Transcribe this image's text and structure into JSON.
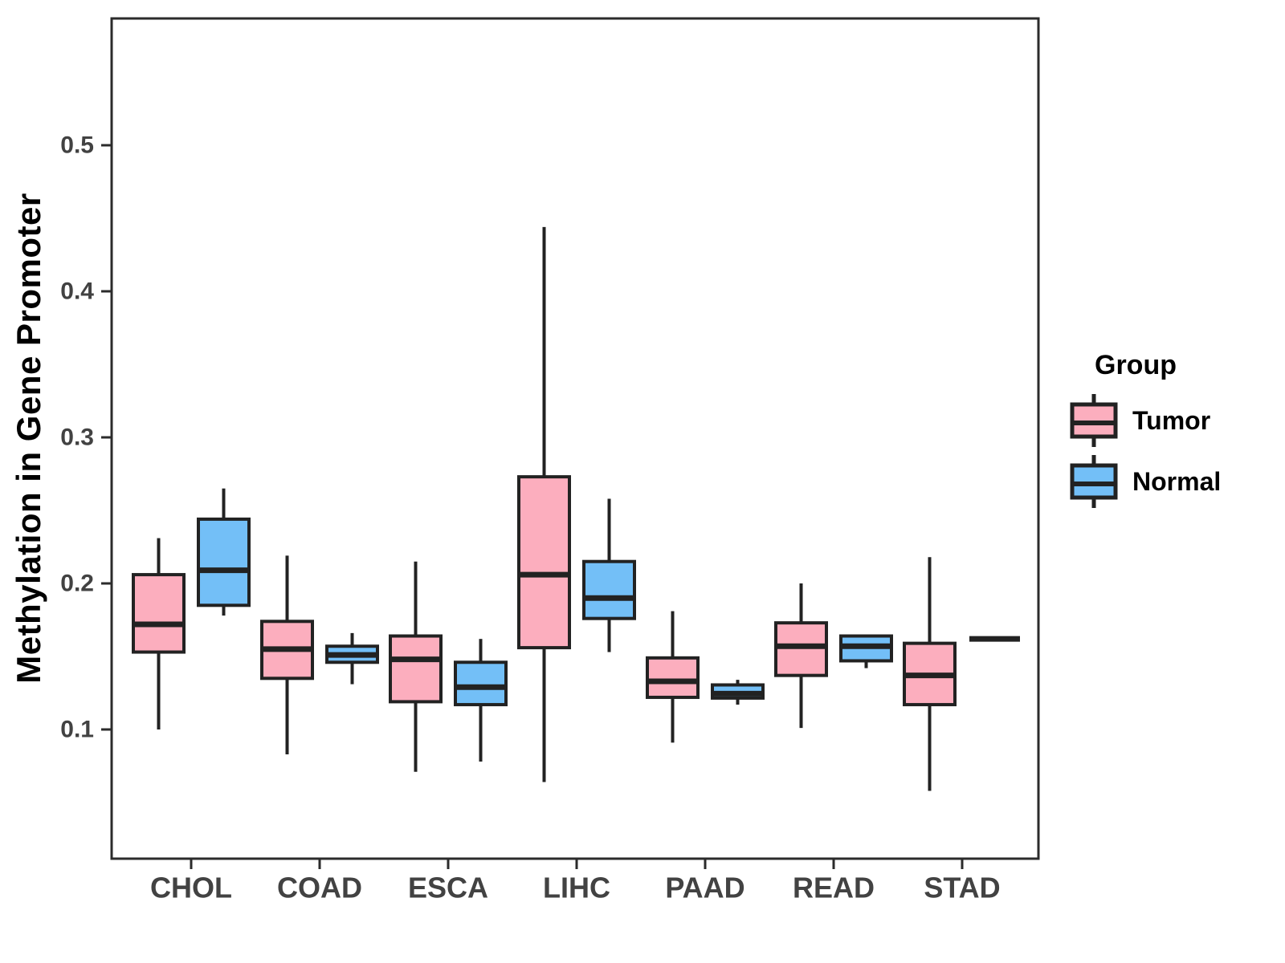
{
  "y_axis": {
    "label": "Methylation in Gene Promoter",
    "tick_labels": [
      "0.1",
      "0.2",
      "0.3",
      "0.4",
      "0.5"
    ],
    "tick_values": [
      0.1,
      0.2,
      0.3,
      0.4,
      0.5
    ]
  },
  "x_axis": {
    "categories": [
      "CHOL",
      "COAD",
      "ESCA",
      "LIHC",
      "PAAD",
      "READ",
      "STAD"
    ]
  },
  "legend": {
    "title": "Group",
    "items": [
      {
        "label": "Tumor",
        "color": "#FCAEBE"
      },
      {
        "label": "Normal",
        "color": "#73BFF7"
      }
    ]
  },
  "colors": {
    "tumor_fill": "#FCAEBE",
    "normal_fill": "#73BFF7",
    "line": "#222222",
    "panel_border": "#2B2B2B",
    "tick_text": "#424242",
    "title_text": "#000000",
    "background": "#FFFFFF"
  },
  "chart_data": {
    "type": "boxplot",
    "title": "",
    "xlabel": "",
    "ylabel": "Methylation in Gene Promoter",
    "ylim": [
      0.01,
      0.59
    ],
    "grid": false,
    "legend_position": "right",
    "categories": [
      "CHOL",
      "COAD",
      "ESCA",
      "LIHC",
      "PAAD",
      "READ",
      "STAD"
    ],
    "series": [
      {
        "name": "Tumor",
        "color": "#FCAEBE",
        "boxes": [
          {
            "category": "CHOL",
            "low": 0.1,
            "q1": 0.153,
            "median": 0.172,
            "q3": 0.206,
            "high": 0.231
          },
          {
            "category": "COAD",
            "low": 0.083,
            "q1": 0.135,
            "median": 0.155,
            "q3": 0.174,
            "high": 0.219
          },
          {
            "category": "ESCA",
            "low": 0.071,
            "q1": 0.119,
            "median": 0.148,
            "q3": 0.164,
            "high": 0.215
          },
          {
            "category": "LIHC",
            "low": 0.064,
            "q1": 0.156,
            "median": 0.206,
            "q3": 0.273,
            "high": 0.444
          },
          {
            "category": "PAAD",
            "low": 0.091,
            "q1": 0.122,
            "median": 0.133,
            "q3": 0.149,
            "high": 0.181
          },
          {
            "category": "READ",
            "low": 0.101,
            "q1": 0.137,
            "median": 0.157,
            "q3": 0.173,
            "high": 0.2
          },
          {
            "category": "STAD",
            "low": 0.058,
            "q1": 0.117,
            "median": 0.137,
            "q3": 0.159,
            "high": 0.218
          }
        ]
      },
      {
        "name": "Normal",
        "color": "#73BFF7",
        "boxes": [
          {
            "category": "CHOL",
            "low": 0.178,
            "q1": 0.185,
            "median": 0.209,
            "q3": 0.244,
            "high": 0.265
          },
          {
            "category": "COAD",
            "low": 0.131,
            "q1": 0.146,
            "median": 0.151,
            "q3": 0.157,
            "high": 0.166
          },
          {
            "category": "ESCA",
            "low": 0.078,
            "q1": 0.117,
            "median": 0.129,
            "q3": 0.146,
            "high": 0.162
          },
          {
            "category": "LIHC",
            "low": 0.153,
            "q1": 0.176,
            "median": 0.19,
            "q3": 0.215,
            "high": 0.258
          },
          {
            "category": "PAAD",
            "low": 0.117,
            "q1": 0.1215,
            "median": 0.1245,
            "q3": 0.1305,
            "high": 0.134
          },
          {
            "category": "READ",
            "low": 0.142,
            "q1": 0.147,
            "median": 0.157,
            "q3": 0.164,
            "high": 0.164
          },
          {
            "category": "STAD",
            "low": 0.162,
            "q1": 0.162,
            "median": 0.162,
            "q3": 0.162,
            "high": 0.162
          }
        ]
      }
    ]
  }
}
